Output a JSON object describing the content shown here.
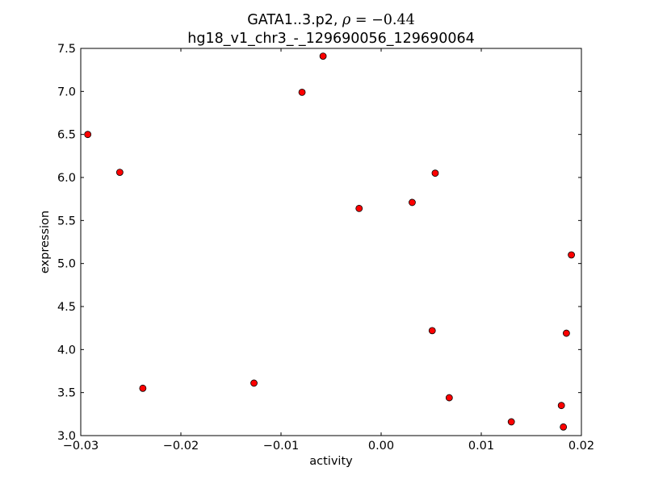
{
  "chart_data": {
    "type": "scatter",
    "title_line1": "GATA1..3.p2, ",
    "title_rho_symbol": "ρ",
    "title_rho_eq": " = ",
    "title_rho_value": "−0.44",
    "title_line2": "hg18_v1_chr3_-_129690056_129690064",
    "xlabel": "activity",
    "ylabel": "expression",
    "xlim": [
      -0.03,
      0.02
    ],
    "ylim": [
      3.0,
      7.5
    ],
    "xticks": [
      -0.03,
      -0.02,
      -0.01,
      0.0,
      0.01,
      0.02
    ],
    "xtick_labels": [
      "−0.03",
      "−0.02",
      "−0.01",
      "0.00",
      "0.01",
      "0.02"
    ],
    "yticks": [
      3.0,
      3.5,
      4.0,
      4.5,
      5.0,
      5.5,
      6.0,
      6.5,
      7.0,
      7.5
    ],
    "ytick_labels": [
      "3.0",
      "3.5",
      "4.0",
      "4.5",
      "5.0",
      "5.5",
      "6.0",
      "6.5",
      "7.0",
      "7.5"
    ],
    "grid": false,
    "marker_color": "#ff0000",
    "marker_edge_color": "#000000",
    "points": [
      {
        "x": -0.0293,
        "y": 6.5
      },
      {
        "x": -0.0261,
        "y": 6.06
      },
      {
        "x": -0.0238,
        "y": 3.55
      },
      {
        "x": -0.0127,
        "y": 3.61
      },
      {
        "x": -0.0079,
        "y": 6.99
      },
      {
        "x": -0.0058,
        "y": 7.41
      },
      {
        "x": -0.0022,
        "y": 5.64
      },
      {
        "x": 0.0031,
        "y": 5.71
      },
      {
        "x": 0.0051,
        "y": 4.22
      },
      {
        "x": 0.0054,
        "y": 6.05
      },
      {
        "x": 0.0068,
        "y": 3.44
      },
      {
        "x": 0.013,
        "y": 3.16
      },
      {
        "x": 0.018,
        "y": 3.35
      },
      {
        "x": 0.0182,
        "y": 3.1
      },
      {
        "x": 0.0185,
        "y": 4.19
      },
      {
        "x": 0.019,
        "y": 5.1
      }
    ]
  }
}
